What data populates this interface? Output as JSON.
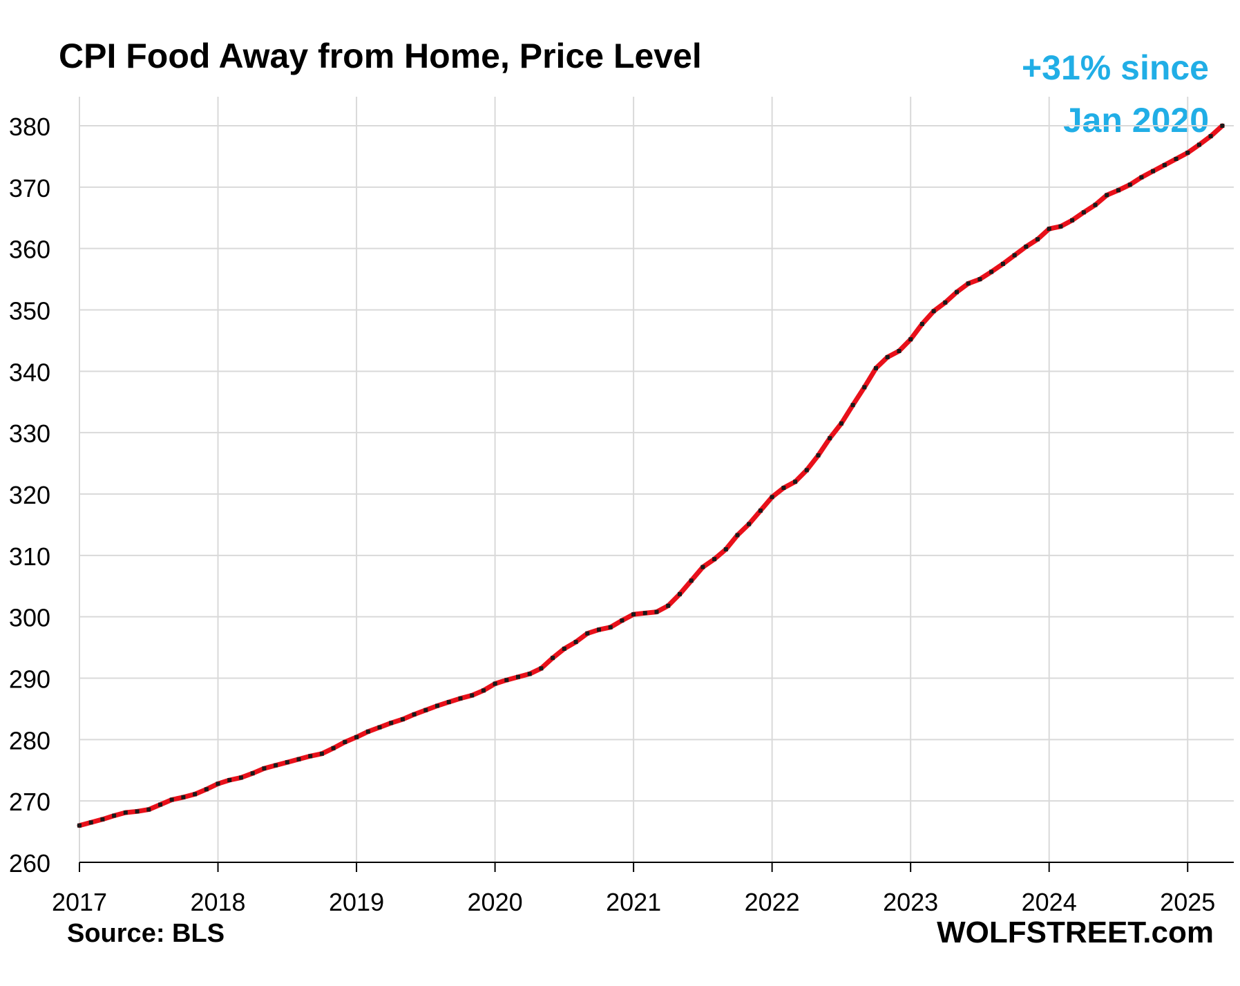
{
  "chart_data": {
    "type": "line",
    "title": "CPI Food Away from Home, Price Level",
    "annotation_lines": [
      "+31% since",
      "Jan 2020"
    ],
    "source": "Source: BLS",
    "brand": "WOLFSTREET.com",
    "xlabel": "",
    "ylabel": "",
    "x_tick_labels": [
      "2017",
      "2018",
      "2019",
      "2020",
      "2021",
      "2022",
      "2023",
      "2024",
      "2025"
    ],
    "y_tick_labels": [
      "260",
      "270",
      "280",
      "290",
      "300",
      "310",
      "320",
      "330",
      "340",
      "350",
      "360",
      "370",
      "380"
    ],
    "xlim": [
      2017.0,
      2025.333
    ],
    "ylim": [
      260,
      380
    ],
    "grid": true,
    "colors": {
      "line": "#e8101a",
      "markers": "#1a1a1a",
      "annotation": "#21aee6",
      "grid": "#d9d9d9"
    },
    "series": [
      {
        "start": "2017-01",
        "frequency": "monthly",
        "values": [
          266.0,
          266.5,
          267.0,
          267.6,
          268.1,
          268.3,
          268.6,
          269.4,
          270.2,
          270.6,
          271.1,
          271.9,
          272.8,
          273.4,
          273.8,
          274.5,
          275.3,
          275.8,
          276.3,
          276.8,
          277.3,
          277.7,
          278.6,
          279.6,
          280.4,
          281.3,
          282.0,
          282.7,
          283.3,
          284.1,
          284.8,
          285.5,
          286.1,
          286.7,
          287.2,
          288.0,
          289.1,
          289.7,
          290.2,
          290.7,
          291.6,
          293.3,
          294.8,
          295.9,
          297.3,
          297.9,
          298.3,
          299.4,
          300.4,
          300.6,
          300.8,
          301.8,
          303.7,
          305.9,
          308.1,
          309.4,
          311.0,
          313.3,
          315.1,
          317.3,
          319.5,
          321.0,
          322.0,
          323.9,
          326.3,
          329.1,
          331.5,
          334.5,
          337.4,
          340.5,
          342.3,
          343.3,
          345.2,
          347.7,
          349.8,
          351.2,
          352.9,
          354.3,
          355.0,
          356.2,
          357.5,
          358.9,
          360.3,
          361.5,
          363.2,
          363.6,
          364.6,
          365.9,
          367.1,
          368.7,
          369.5,
          370.4,
          371.6,
          372.6,
          373.6,
          374.6,
          375.6,
          376.9,
          378.3,
          380.0
        ]
      }
    ]
  }
}
